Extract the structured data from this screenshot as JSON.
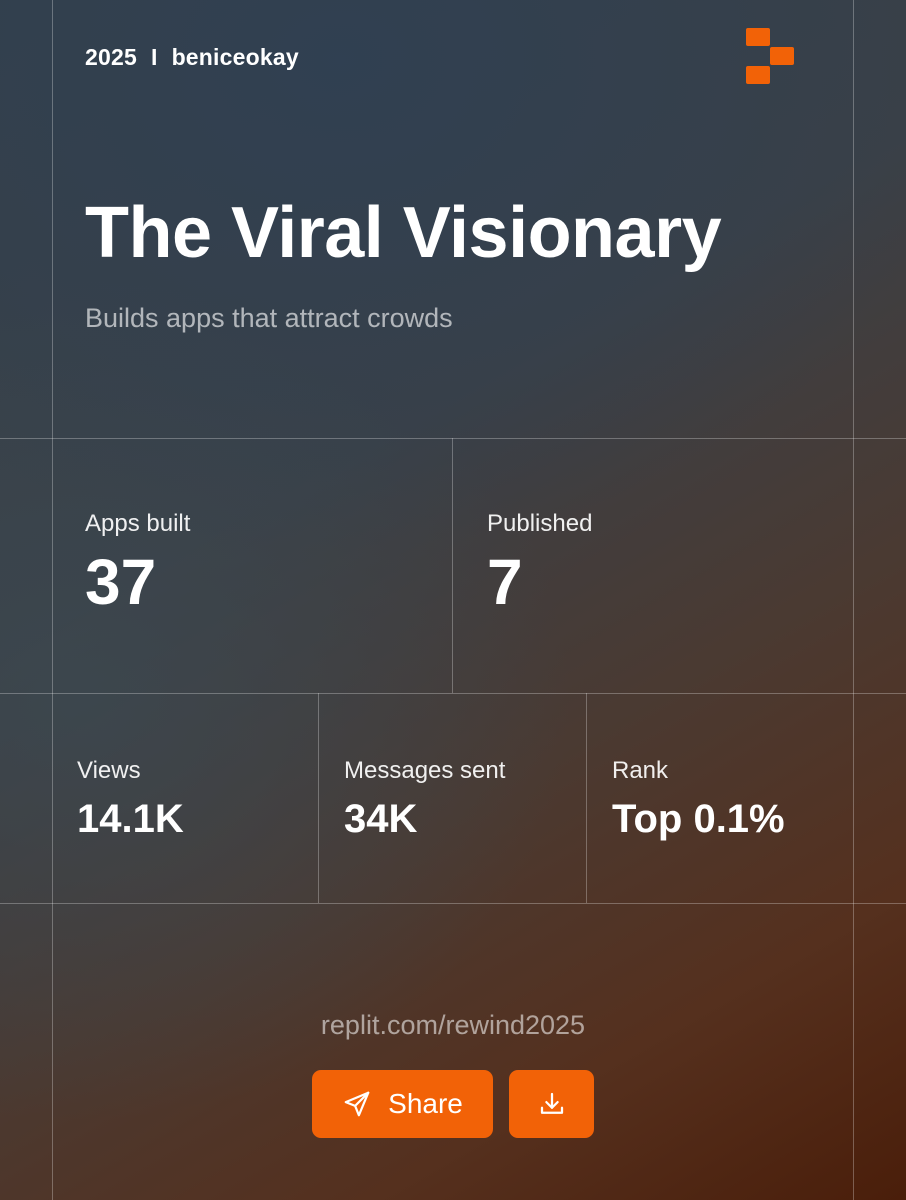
{
  "header": {
    "year": "2025",
    "separator": "I",
    "username": "beniceokay"
  },
  "brand": {
    "logo_icon": "replit-logo-icon",
    "accent_color": "#f26207"
  },
  "title": "The Viral Visionary",
  "subtitle": "Builds apps that attract crowds",
  "stats_primary": [
    {
      "label": "Apps built",
      "value": "37"
    },
    {
      "label": "Published",
      "value": "7"
    }
  ],
  "stats_secondary": [
    {
      "label": "Views",
      "value": "14.1K"
    },
    {
      "label": "Messages sent",
      "value": "34K"
    },
    {
      "label": "Rank",
      "value": "Top 0.1%"
    }
  ],
  "footer": {
    "url": "replit.com/rewind2025",
    "share_label": "Share",
    "share_icon": "send-icon",
    "download_icon": "download-icon"
  }
}
